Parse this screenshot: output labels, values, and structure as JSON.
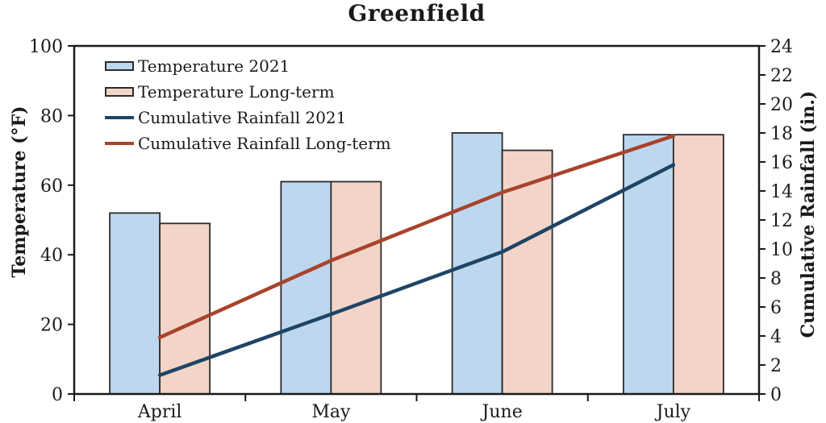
{
  "chart_data": {
    "type": "combo-bar-line",
    "title": "Greenfield",
    "categories": [
      "April",
      "May",
      "June",
      "July"
    ],
    "series": [
      {
        "name": "Temperature 2021",
        "type": "bar",
        "axis": "left",
        "values": [
          52,
          61,
          75,
          74.5
        ],
        "fill": "#BDD7EE",
        "outline": "#2b2b2b"
      },
      {
        "name": "Temperature Long-term",
        "type": "bar",
        "axis": "left",
        "values": [
          49,
          61,
          70,
          74.5
        ],
        "fill": "#F2D5C8",
        "outline": "#2b2b2b"
      },
      {
        "name": "Cumulative Rainfall 2021",
        "type": "line",
        "axis": "right",
        "values": [
          1.3,
          5.5,
          9.8,
          15.8
        ],
        "color": "#1F4466"
      },
      {
        "name": "Cumulative Rainfall Long-term",
        "type": "line",
        "axis": "right",
        "values": [
          3.9,
          9.2,
          13.9,
          17.8
        ],
        "color": "#A8432C"
      }
    ],
    "left_axis": {
      "label": "Temperature (°F)",
      "min": 0,
      "max": 100,
      "step": 20,
      "ticks": [
        0,
        20,
        40,
        60,
        80,
        100
      ]
    },
    "right_axis": {
      "label": "Cumulative Rainfall (in.)",
      "min": 0,
      "max": 24,
      "step": 2,
      "ticks": [
        0,
        2,
        4,
        6,
        8,
        10,
        12,
        14,
        16,
        18,
        20,
        22,
        24
      ]
    },
    "legend_position": "top-left-inside",
    "grid": false,
    "axis_color": "#1a1a1a"
  }
}
